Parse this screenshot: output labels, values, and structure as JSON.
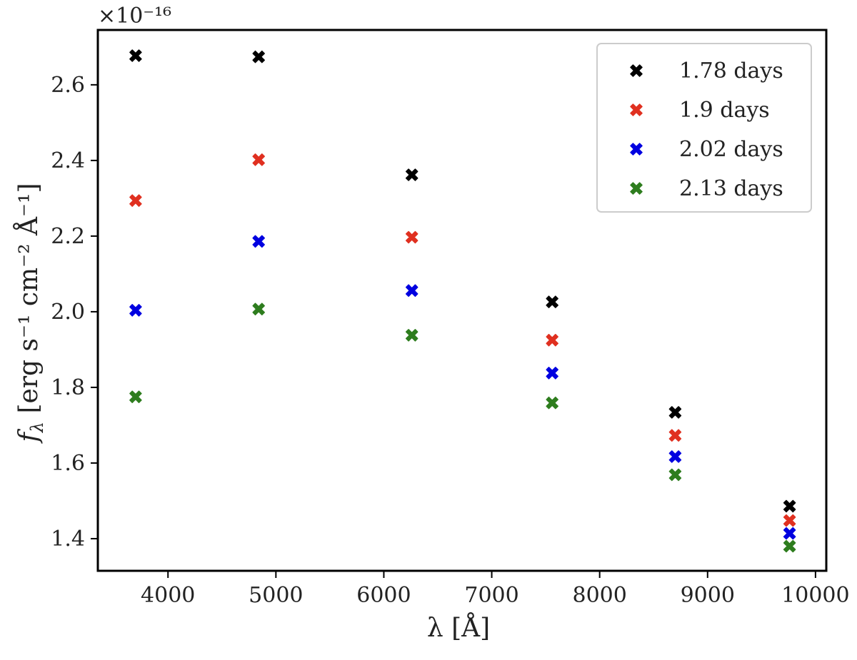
{
  "chart_data": {
    "type": "scatter",
    "title": "",
    "xlabel": "λ [Å]",
    "ylabel_main": "f",
    "ylabel_sub": "λ",
    "ylabel_rest": " [erg s⁻¹ cm⁻² Å⁻¹]",
    "y_offset_label": "×10⁻¹⁶",
    "xlim": [
      3350,
      10100
    ],
    "ylim": [
      1.315,
      2.745
    ],
    "xticks": [
      4000,
      5000,
      6000,
      7000,
      8000,
      9000,
      10000
    ],
    "yticks": [
      1.4,
      1.6,
      1.8,
      2.0,
      2.2,
      2.4,
      2.6
    ],
    "ytick_labels": [
      "1.4",
      "1.6",
      "1.8",
      "2.0",
      "2.2",
      "2.4",
      "2.6"
    ],
    "x": [
      3700,
      4840,
      6260,
      7560,
      8700,
      9760
    ],
    "grid": false,
    "legend_position": "top-right",
    "marker": "X",
    "series": [
      {
        "name": "1.78 days",
        "color": "#000000",
        "values": [
          2.677,
          2.674,
          2.362,
          2.026,
          1.734,
          1.486
        ]
      },
      {
        "name": "1.9 days",
        "color": "#e03020",
        "values": [
          2.294,
          2.402,
          2.197,
          1.925,
          1.673,
          1.448
        ]
      },
      {
        "name": "2.02 days",
        "color": "#0000e0",
        "values": [
          2.004,
          2.186,
          2.056,
          1.838,
          1.617,
          1.414
        ]
      },
      {
        "name": "2.13 days",
        "color": "#2e7d1e",
        "values": [
          1.775,
          2.007,
          1.938,
          1.759,
          1.569,
          1.38
        ]
      }
    ]
  }
}
